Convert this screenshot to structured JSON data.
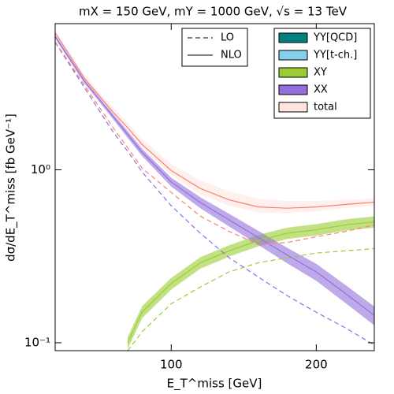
{
  "chart_data": {
    "type": "line",
    "title": "mX = 150 GeV, mY = 1000 GeV, √s = 13 TeV",
    "x_label": "E_T^miss [GeV]",
    "y_label": "dσ/dE_T^miss [fb GeV⁻¹]",
    "log_y": true,
    "xlim": [
      20,
      240
    ],
    "ylim": [
      0.09,
      7
    ],
    "xticks": [
      100,
      200
    ],
    "yticks": [
      {
        "value": 1,
        "label": "10⁰"
      },
      {
        "value": 0.1,
        "label": "10⁻¹"
      }
    ],
    "x": [
      20,
      40,
      60,
      70,
      80,
      100,
      120,
      140,
      160,
      180,
      200,
      220,
      240
    ],
    "line_styles": [
      {
        "name": "LO",
        "dashed": true
      },
      {
        "name": "NLO",
        "dashed": false
      }
    ],
    "series": [
      {
        "name": "YY[QCD]",
        "color": "#008080"
      },
      {
        "name": "YY[t-ch.]",
        "color": "#87ceeb"
      },
      {
        "name": "XY",
        "color": "#9acd32",
        "line_color": "#9acd32",
        "values": [
          null,
          null,
          null,
          0.1,
          0.151,
          0.22,
          0.29,
          0.34,
          0.39,
          0.43,
          0.45,
          0.48,
          0.5
        ],
        "lower": [
          null,
          null,
          null,
          0.092,
          0.139,
          0.203,
          0.268,
          0.315,
          0.361,
          0.398,
          0.417,
          0.445,
          0.463
        ],
        "upper": [
          null,
          null,
          null,
          0.108,
          0.163,
          0.237,
          0.312,
          0.366,
          0.42,
          0.463,
          0.485,
          0.517,
          0.538
        ],
        "lo_values": [
          null,
          null,
          null,
          0.09,
          0.116,
          0.168,
          0.21,
          0.257,
          0.29,
          0.31,
          0.33,
          0.34,
          0.35
        ]
      },
      {
        "name": "XX",
        "color": "#9370db",
        "line_color": "#9370db",
        "values": [
          5.9,
          3.28,
          2.04,
          1.6,
          1.26,
          0.85,
          0.647,
          0.513,
          0.406,
          0.321,
          0.257,
          0.193,
          0.144
        ],
        "lower": [
          5.75,
          3.18,
          1.96,
          1.53,
          1.2,
          0.8,
          0.6,
          0.47,
          0.368,
          0.288,
          0.228,
          0.17,
          0.126
        ],
        "upper": [
          6.05,
          3.38,
          2.12,
          1.67,
          1.32,
          0.9,
          0.694,
          0.556,
          0.444,
          0.354,
          0.286,
          0.216,
          0.162
        ],
        "lo_values": [
          5.46,
          3.0,
          1.65,
          1.28,
          0.97,
          0.62,
          0.43,
          0.31,
          0.24,
          0.187,
          0.15,
          0.122,
          0.097
        ]
      },
      {
        "name": "total",
        "color": "#ffe4e1",
        "line_color": "#fa8072",
        "values": [
          6.2,
          3.4,
          2.15,
          1.75,
          1.4,
          0.99,
          0.78,
          0.67,
          0.61,
          0.6,
          0.61,
          0.63,
          0.65
        ],
        "lower": [
          6.05,
          3.3,
          2.07,
          1.67,
          1.33,
          0.93,
          0.72,
          0.62,
          0.565,
          0.56,
          0.575,
          0.6,
          0.62
        ],
        "upper": [
          6.4,
          3.55,
          2.28,
          1.87,
          1.51,
          1.08,
          0.87,
          0.75,
          0.68,
          0.66,
          0.66,
          0.67,
          0.68
        ],
        "lo_values": [
          5.5,
          3.1,
          1.75,
          1.34,
          1.02,
          0.74,
          0.54,
          0.44,
          0.37,
          0.38,
          0.41,
          0.44,
          0.48
        ]
      }
    ]
  }
}
